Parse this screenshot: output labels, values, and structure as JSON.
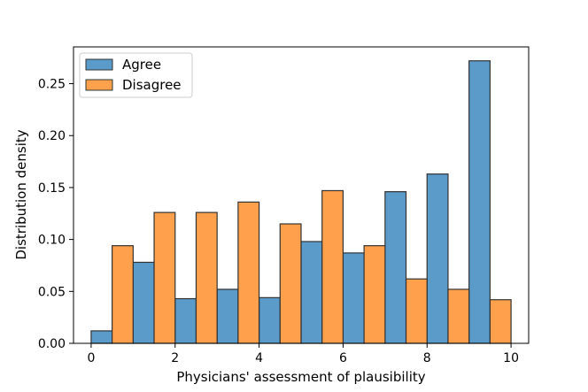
{
  "chart_data": {
    "type": "bar",
    "title": "",
    "xlabel": "Physicians' assessment of plausibility",
    "ylabel": "Distribution density",
    "xlim": [
      -0.42,
      10.42
    ],
    "ylim": [
      0,
      0.2854
    ],
    "xticks": [
      0,
      2,
      4,
      6,
      8,
      10
    ],
    "xtick_labels": [
      "0",
      "2",
      "4",
      "6",
      "8",
      "10"
    ],
    "yticks": [
      0.0,
      0.05,
      0.1,
      0.15,
      0.2,
      0.25
    ],
    "ytick_labels": [
      "0.00",
      "0.05",
      "0.10",
      "0.15",
      "0.20",
      "0.25"
    ],
    "bin_edges": [
      0,
      1,
      2,
      3,
      4,
      5,
      6,
      7,
      8,
      9,
      10
    ],
    "grid": false,
    "legend": "upper-left",
    "series": [
      {
        "name": "Agree",
        "color": "#5b9bc9",
        "values": [
          0.012,
          0.078,
          0.043,
          0.052,
          0.044,
          0.098,
          0.087,
          0.146,
          0.163,
          0.272
        ]
      },
      {
        "name": "Disagree",
        "color": "#fea04c",
        "values": [
          0.094,
          0.126,
          0.126,
          0.136,
          0.115,
          0.147,
          0.094,
          0.062,
          0.052,
          0.042
        ]
      }
    ]
  }
}
